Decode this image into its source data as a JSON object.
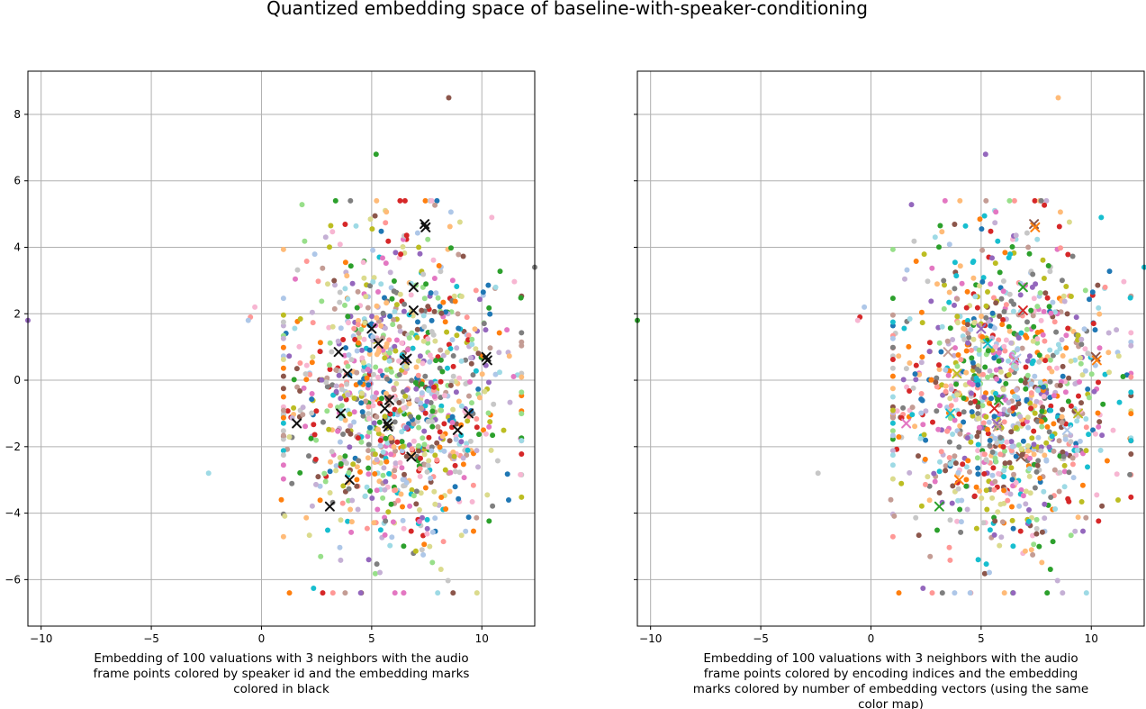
{
  "figure": {
    "suptitle": "Quantized embedding space of baseline-with-speaker-conditioning"
  },
  "chart_data": [
    {
      "type": "scatter",
      "xlabel_lines": [
        "Embedding of 100 valuations with 3 neighbors with the audio",
        "frame points colored by speaker id and the embedding marks",
        "colored in black"
      ],
      "xlim": [
        -10.6,
        12.4
      ],
      "ylim": [
        -7.4,
        9.3
      ],
      "xticks": [
        -10,
        -5,
        0,
        5,
        10
      ],
      "yticks": [
        -6,
        -4,
        -2,
        0,
        2,
        4,
        6,
        8
      ],
      "grid": true,
      "show_yticklabels": true,
      "marks_color_mode": "black",
      "point_color_mode": "speaker"
    },
    {
      "type": "scatter",
      "xlabel_lines": [
        "Embedding of 100 valuations with 3 neighbors with the audio",
        "frame points colored by encoding indices and the embedding",
        "marks colored by number of embedding vectors (using the same",
        "color map)"
      ],
      "xlim": [
        -10.6,
        12.4
      ],
      "ylim": [
        -7.4,
        9.3
      ],
      "xticks": [
        -10,
        -5,
        0,
        5,
        10
      ],
      "yticks": [
        -6,
        -4,
        -2,
        0,
        2,
        4,
        6,
        8
      ],
      "grid": true,
      "show_yticklabels": false,
      "marks_color_mode": "palette",
      "point_color_mode": "index"
    }
  ],
  "points_summary": {
    "count": 1100,
    "center": [
      6.2,
      -0.3
    ],
    "spread": [
      2.5,
      2.5
    ],
    "seed": 7
  },
  "outliers": [
    [
      8.5,
      8.5
    ],
    [
      5.2,
      6.8
    ],
    [
      -2.4,
      -2.8
    ],
    [
      -0.3,
      2.2
    ],
    [
      -0.5,
      1.9
    ],
    [
      -0.6,
      1.8
    ],
    [
      12.4,
      3.4
    ],
    [
      -10.6,
      1.8
    ],
    [
      0.9,
      -3.6
    ]
  ],
  "embedding_marks": [
    [
      7.4,
      4.7
    ],
    [
      7.45,
      4.6
    ],
    [
      6.9,
      2.8
    ],
    [
      6.9,
      2.1
    ],
    [
      5.0,
      1.55
    ],
    [
      3.5,
      0.85
    ],
    [
      5.3,
      1.1
    ],
    [
      3.9,
      0.2
    ],
    [
      6.5,
      0.6
    ],
    [
      6.6,
      0.65
    ],
    [
      10.2,
      0.7
    ],
    [
      10.25,
      0.6
    ],
    [
      5.8,
      -0.6
    ],
    [
      5.6,
      -0.85
    ],
    [
      5.7,
      -1.3
    ],
    [
      5.75,
      -1.4
    ],
    [
      3.6,
      -1.0
    ],
    [
      9.4,
      -1.0
    ],
    [
      1.6,
      -1.3
    ],
    [
      8.9,
      -1.5
    ],
    [
      6.8,
      -2.3
    ],
    [
      4.0,
      -3.0
    ],
    [
      3.1,
      -3.8
    ]
  ],
  "palette": [
    "#1f77b4",
    "#ff7f0e",
    "#2ca02c",
    "#d62728",
    "#9467bd",
    "#8c564b",
    "#e377c2",
    "#7f7f7f",
    "#bcbd22",
    "#17becf",
    "#aec7e8",
    "#ffbb78",
    "#98df8a",
    "#ff9896",
    "#c5b0d5",
    "#c49c94",
    "#f7b6d2",
    "#c7c7c7",
    "#dbdb8d",
    "#9edae5"
  ],
  "mark_colors_right": [
    "#8c564b",
    "#ff7f0e",
    "#2ca02c",
    "#d62728",
    "#9467bd",
    "#c49c94",
    "#17becf",
    "#bcbd22",
    "#e377c2",
    "#aec7e8"
  ]
}
